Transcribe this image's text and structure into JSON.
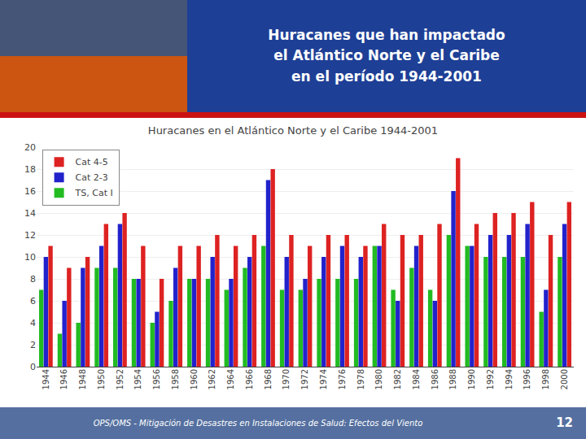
{
  "chart_data": {
    "type": "bar",
    "title": "Huracanes  que han impactado\nel Atlántico Norte y el Caribe\nen el período 1944-2001",
    "subtitle": "Huracanes en el Atlántico Norte y el Caribe 1944-2001",
    "annotations": [
      "OPS/OMS - Mitigación de Desastres en Instalaciones de Salud: Efectos del Viento",
      "12"
    ],
    "categories": [
      "1944",
      "1946",
      "1948",
      "1950",
      "1952",
      "1954",
      "1956",
      "1958",
      "1960",
      "1962",
      "1964",
      "1966",
      "1968",
      "1970",
      "1972",
      "1974",
      "1976",
      "1978",
      "1980",
      "1982",
      "1984",
      "1986",
      "1988",
      "1990",
      "1992",
      "1994",
      "1996",
      "1998",
      "2000"
    ],
    "series": [
      {
        "name": "TS, Cat I",
        "color": "#22BB22",
        "values": [
          7,
          3,
          4,
          9,
          9,
          8,
          4,
          6,
          8,
          8,
          7,
          9,
          11,
          7,
          7,
          8,
          8,
          8,
          11,
          7,
          9,
          7,
          12,
          11,
          10,
          10,
          10,
          5,
          10
        ]
      },
      {
        "name": "Cat 2-3",
        "color": "#2222CC",
        "values": [
          10,
          6,
          9,
          11,
          13,
          8,
          5,
          9,
          8,
          10,
          8,
          10,
          17,
          10,
          8,
          10,
          11,
          10,
          11,
          6,
          11,
          6,
          16,
          11,
          12,
          12,
          13,
          7,
          13
        ]
      },
      {
        "name": "Cat 4-5",
        "color": "#DD2222",
        "values": [
          11,
          9,
          10,
          13,
          14,
          11,
          8,
          11,
          11,
          12,
          11,
          12,
          18,
          12,
          11,
          12,
          12,
          11,
          13,
          12,
          12,
          13,
          19,
          13,
          14,
          14,
          15,
          12,
          15
        ]
      }
    ],
    "ylim": [
      0,
      20
    ],
    "yticks": [
      0,
      2,
      4,
      6,
      8,
      10,
      12,
      14,
      16,
      18,
      20
    ],
    "grid": true,
    "legend": "upper left"
  }
}
